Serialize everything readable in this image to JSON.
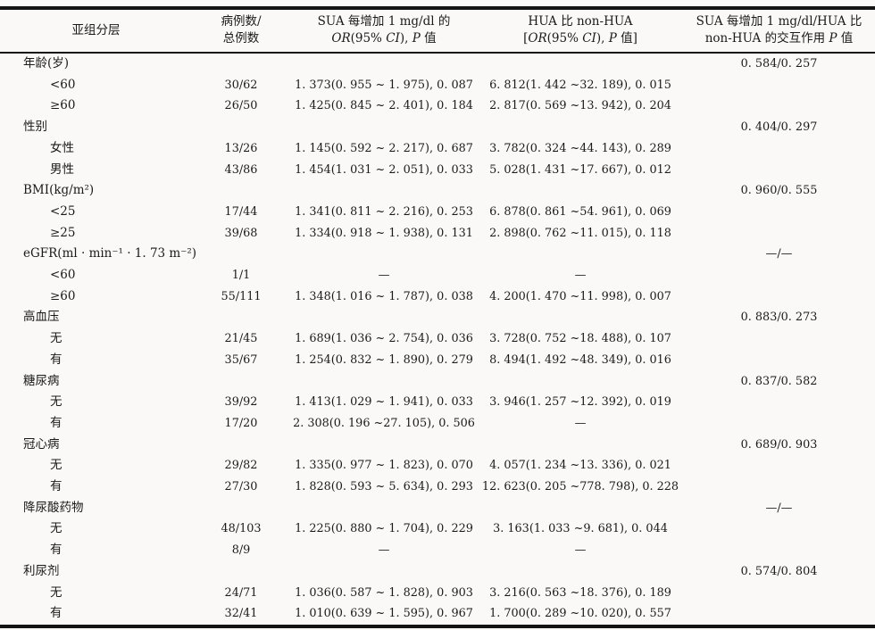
{
  "table": {
    "header": {
      "col1": {
        "line1": "亚组分层"
      },
      "col2": {
        "line1": "病例数/",
        "line2": "总例数"
      },
      "col3": {
        "line1": "SUA 每增加 1 mg/dl 的",
        "line2_parts": [
          {
            "t": "OR",
            "i": true
          },
          {
            "t": "(95% ",
            "i": false
          },
          {
            "t": "CI",
            "i": true
          },
          {
            "t": "), ",
            "i": false
          },
          {
            "t": "P",
            "i": true
          },
          {
            "t": " 值",
            "i": false
          }
        ]
      },
      "col4": {
        "line1": "HUA 比 non-HUA",
        "line2_parts": [
          {
            "t": "[",
            "i": false
          },
          {
            "t": "OR",
            "i": true
          },
          {
            "t": "(95% ",
            "i": false
          },
          {
            "t": "CI",
            "i": true
          },
          {
            "t": "), ",
            "i": false
          },
          {
            "t": "P",
            "i": true
          },
          {
            "t": " 值]",
            "i": false
          }
        ]
      },
      "col5": {
        "line1": "SUA 每增加 1 mg/dl/HUA 比",
        "line2_parts": [
          {
            "t": "non-HUA 的交互作用 ",
            "i": false
          },
          {
            "t": "P",
            "i": true
          },
          {
            "t": " 值",
            "i": false
          }
        ]
      }
    },
    "rows": [
      {
        "label": "年龄(岁)",
        "indent": false,
        "cases": "",
        "sua": "",
        "hua": "",
        "inter": "0. 584/0. 257"
      },
      {
        "label": "<60",
        "indent": true,
        "cases": "30/62",
        "sua": "1. 373(0. 955 ~ 1. 975), 0. 087",
        "hua": "6. 812(1. 442 ~32. 189), 0. 015",
        "inter": ""
      },
      {
        "label": "≥60",
        "indent": true,
        "cases": "26/50",
        "sua": "1. 425(0. 845 ~ 2. 401), 0. 184",
        "hua": "2. 817(0. 569 ~13. 942), 0. 204",
        "inter": ""
      },
      {
        "label": "性别",
        "indent": false,
        "cases": "",
        "sua": "",
        "hua": "",
        "inter": "0. 404/0. 297"
      },
      {
        "label": "女性",
        "indent": true,
        "cases": "13/26",
        "sua": "1. 145(0. 592 ~ 2. 217), 0. 687",
        "hua": "3. 782(0. 324 ~44. 143), 0. 289",
        "inter": ""
      },
      {
        "label": "男性",
        "indent": true,
        "cases": "43/86",
        "sua": "1. 454(1. 031 ~ 2. 051), 0. 033",
        "hua": "5. 028(1. 431 ~17. 667), 0. 012",
        "inter": ""
      },
      {
        "label": "BMI(kg/m²)",
        "indent": false,
        "cases": "",
        "sua": "",
        "hua": "",
        "inter": "0. 960/0. 555"
      },
      {
        "label": "<25",
        "indent": true,
        "cases": "17/44",
        "sua": "1. 341(0. 811 ~ 2. 216), 0. 253",
        "hua": "6. 878(0. 861 ~54. 961), 0. 069",
        "inter": ""
      },
      {
        "label": "≥25",
        "indent": true,
        "cases": "39/68",
        "sua": "1. 334(0. 918 ~ 1. 938), 0. 131",
        "hua": "2. 898(0. 762 ~11. 015), 0. 118",
        "inter": ""
      },
      {
        "label": "eGFR(ml · min⁻¹ · 1. 73 m⁻²)",
        "indent": false,
        "cases": "",
        "sua": "",
        "hua": "",
        "inter": "—/—"
      },
      {
        "label": "<60",
        "indent": true,
        "cases": "1/1",
        "sua": "—",
        "hua": "—",
        "inter": ""
      },
      {
        "label": "≥60",
        "indent": true,
        "cases": "55/111",
        "sua": "1. 348(1. 016 ~ 1. 787), 0. 038",
        "hua": "4. 200(1. 470 ~11. 998), 0. 007",
        "inter": ""
      },
      {
        "label": "高血压",
        "indent": false,
        "cases": "",
        "sua": "",
        "hua": "",
        "inter": "0. 883/0. 273"
      },
      {
        "label": "无",
        "indent": true,
        "cases": "21/45",
        "sua": "1. 689(1. 036 ~ 2. 754), 0. 036",
        "hua": "3. 728(0. 752 ~18. 488), 0. 107",
        "inter": ""
      },
      {
        "label": "有",
        "indent": true,
        "cases": "35/67",
        "sua": "1. 254(0. 832 ~ 1. 890), 0. 279",
        "hua": "8. 494(1. 492 ~48. 349), 0. 016",
        "inter": ""
      },
      {
        "label": "糖尿病",
        "indent": false,
        "cases": "",
        "sua": "",
        "hua": "",
        "inter": "0. 837/0. 582"
      },
      {
        "label": "无",
        "indent": true,
        "cases": "39/92",
        "sua": "1. 413(1. 029 ~ 1. 941), 0. 033",
        "hua": "3. 946(1. 257 ~12. 392), 0. 019",
        "inter": ""
      },
      {
        "label": "有",
        "indent": true,
        "cases": "17/20",
        "sua": "2. 308(0. 196 ~27. 105), 0. 506",
        "hua": "—",
        "inter": ""
      },
      {
        "label": "冠心病",
        "indent": false,
        "cases": "",
        "sua": "",
        "hua": "",
        "inter": "0. 689/0. 903"
      },
      {
        "label": "无",
        "indent": true,
        "cases": "29/82",
        "sua": "1. 335(0. 977 ~ 1. 823), 0. 070",
        "hua": "4. 057(1. 234 ~13. 336), 0. 021",
        "inter": ""
      },
      {
        "label": "有",
        "indent": true,
        "cases": "27/30",
        "sua": "1. 828(0. 593 ~ 5. 634), 0. 293",
        "hua": "12. 623(0. 205 ~778. 798), 0. 228",
        "inter": ""
      },
      {
        "label": "降尿酸药物",
        "indent": false,
        "cases": "",
        "sua": "",
        "hua": "",
        "inter": "—/—"
      },
      {
        "label": "无",
        "indent": true,
        "cases": "48/103",
        "sua": "1. 225(0. 880 ~ 1. 704), 0. 229",
        "hua": "3. 163(1. 033 ~9. 681), 0. 044",
        "inter": ""
      },
      {
        "label": "有",
        "indent": true,
        "cases": "8/9",
        "sua": "—",
        "hua": "—",
        "inter": ""
      },
      {
        "label": "利尿剂",
        "indent": false,
        "cases": "",
        "sua": "",
        "hua": "",
        "inter": "0. 574/0. 804"
      },
      {
        "label": "无",
        "indent": true,
        "cases": "24/71",
        "sua": "1. 036(0. 587 ~ 1. 828), 0. 903",
        "hua": "3. 216(0. 563 ~18. 376), 0. 189",
        "inter": ""
      },
      {
        "label": "有",
        "indent": true,
        "cases": "32/41",
        "sua": "1. 010(0. 639 ~ 1. 595), 0. 967",
        "hua": "1. 700(0. 289 ~10. 020), 0. 557",
        "inter": ""
      }
    ]
  }
}
